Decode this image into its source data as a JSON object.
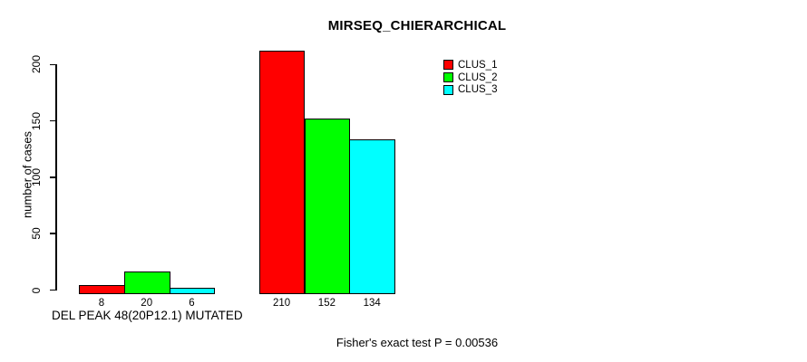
{
  "chart_data": {
    "type": "bar",
    "title": "MIRSEQ_CHIERARCHICAL",
    "ylabel": "number of cases",
    "xlabel": "DEL PEAK 48(20P12.1) MUTATED",
    "ylim": [
      0,
      200
    ],
    "yticks": [
      "0",
      "50",
      "100",
      "150",
      "200"
    ],
    "grid": false,
    "legend_position": "top-right",
    "series": [
      {
        "name": "CLUS_1",
        "color": "#ff0000",
        "values": [
          8,
          210
        ]
      },
      {
        "name": "CLUS_2",
        "color": "#00ff00",
        "values": [
          20,
          152
        ]
      },
      {
        "name": "CLUS_3",
        "color": "#00ffff",
        "values": [
          6,
          134
        ]
      }
    ],
    "annotation": "Fisher's exact test P = 0.00536"
  },
  "colors": {
    "background": "#ffffff",
    "axis": "#000000",
    "text": "#000000",
    "bar_border": "#000000"
  }
}
